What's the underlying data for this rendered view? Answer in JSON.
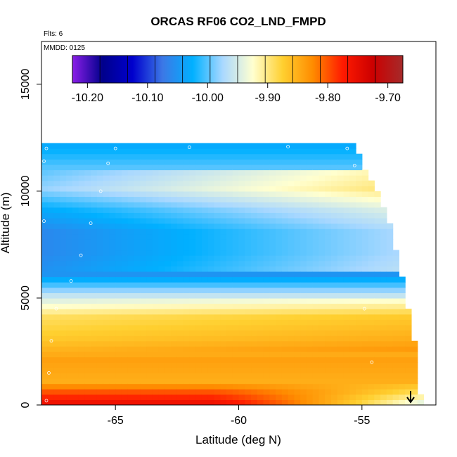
{
  "chart_data": {
    "type": "heatmap",
    "title": "ORCAS RF06 CO2_LND_FMPD",
    "annotations": {
      "flights": "Flts: 6",
      "date": "MMDD: 0125"
    },
    "xlabel": "Latitude (deg N)",
    "ylabel": "Altitude (m)",
    "xlim": [
      -68,
      -52
    ],
    "ylim": [
      0,
      17000
    ],
    "x_ticks": [
      -65,
      -60,
      -55
    ],
    "x_tick_labels": [
      "-65",
      "-60",
      "-55"
    ],
    "y_ticks": [
      0,
      5000,
      10000,
      15000
    ],
    "y_tick_labels": [
      "0",
      "5000",
      "10000",
      "15000"
    ],
    "colorbar": {
      "range": [
        -10.225,
        -9.675
      ],
      "ticks": [
        -10.2,
        -10.1,
        -10.0,
        -9.9,
        -9.8,
        -9.7
      ],
      "tick_labels": [
        "-10.20",
        "-10.10",
        "-10.00",
        "-9.90",
        "-9.80",
        "-9.70"
      ],
      "colors": [
        "#8b1ee8",
        "#00008b",
        "#0000cd",
        "#3c78e6",
        "#00b0ff",
        "#a9d8ff",
        "#ffffd0",
        "#ffd030",
        "#ff8c00",
        "#ff1a00",
        "#cc0000",
        "#a52a2a"
      ]
    },
    "field_profiles": [
      {
        "alt": 0,
        "value": -9.76
      },
      {
        "alt": 500,
        "value": -9.8
      },
      {
        "alt": 1000,
        "value": -9.85
      },
      {
        "alt": 2000,
        "value": -9.84
      },
      {
        "alt": 3000,
        "value": -9.87
      },
      {
        "alt": 4000,
        "value": -9.89
      },
      {
        "alt": 5000,
        "value": -9.96
      },
      {
        "alt": 6000,
        "value": -10.05
      },
      {
        "alt": 7000,
        "value": -10.06
      },
      {
        "alt": 8000,
        "value": -10.06
      },
      {
        "alt": 9000,
        "value": -10.03
      },
      {
        "alt": 10000,
        "value": -9.98
      },
      {
        "alt": 11000,
        "value": -10.0
      },
      {
        "alt": 12000,
        "value": -10.03
      }
    ],
    "max_altitude_by_latitude": [
      {
        "lat": -68,
        "alt": 12100
      },
      {
        "lat": -55.5,
        "alt": 12100
      },
      {
        "lat": -55,
        "alt": 11000
      },
      {
        "lat": -54.5,
        "alt": 10000
      },
      {
        "lat": -54,
        "alt": 8500
      },
      {
        "lat": -53.5,
        "alt": 6000
      },
      {
        "lat": -53,
        "alt": 2900
      },
      {
        "lat": -52.8,
        "alt": 300
      }
    ],
    "flight_track_points": [
      {
        "lat": -67.8,
        "alt": 200
      },
      {
        "lat": -67.7,
        "alt": 1500
      },
      {
        "lat": -67.6,
        "alt": 3000
      },
      {
        "lat": -67.4,
        "alt": 4500
      },
      {
        "lat": -66.8,
        "alt": 5800
      },
      {
        "lat": -66.4,
        "alt": 7000
      },
      {
        "lat": -66.0,
        "alt": 8500
      },
      {
        "lat": -65.6,
        "alt": 10000
      },
      {
        "lat": -65.3,
        "alt": 11300
      },
      {
        "lat": -65.0,
        "alt": 12000
      },
      {
        "lat": -62.0,
        "alt": 12050
      },
      {
        "lat": -58.0,
        "alt": 12080
      },
      {
        "lat": -55.6,
        "alt": 12000
      },
      {
        "lat": -55.3,
        "alt": 11200
      },
      {
        "lat": -67.9,
        "alt": 8600
      },
      {
        "lat": -67.9,
        "alt": 11400
      },
      {
        "lat": -67.8,
        "alt": 12000
      },
      {
        "lat": -54.9,
        "alt": 4500
      },
      {
        "lat": -54.6,
        "alt": 2000
      }
    ]
  }
}
